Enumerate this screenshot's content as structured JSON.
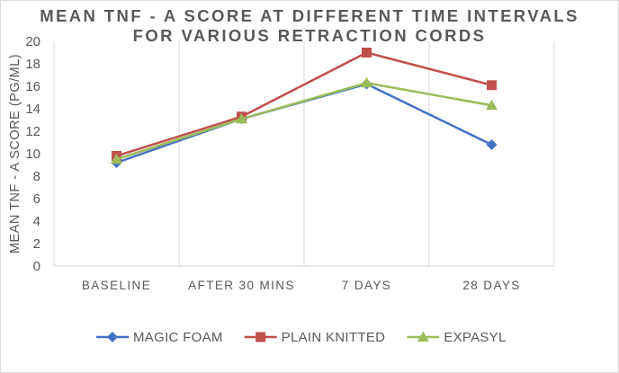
{
  "chart_data": {
    "type": "line",
    "title_line1": "MEAN TNF - A SCORE AT DIFFERENT TIME INTERVALS",
    "title_line2": "FOR VARIOUS RETRACTION CORDS",
    "xlabel": "",
    "ylabel": "MEAN TNF - A SCORE (PG/ML)",
    "categories": [
      "BASELINE",
      "AFTER 30 MINS",
      "7 DAYS",
      "28 DAYS"
    ],
    "ylim": [
      0,
      20
    ],
    "yticks": [
      "0",
      "2",
      "4",
      "6",
      "8",
      "10",
      "12",
      "14",
      "16",
      "18",
      "20"
    ],
    "grid": "vertical",
    "legend_position": "bottom",
    "series": [
      {
        "name": "MAGIC FOAM",
        "values": [
          9.2,
          13.1,
          16.2,
          10.8
        ],
        "color": "#4472c4",
        "marker": "diamond"
      },
      {
        "name": "PLAIN KNITTED",
        "values": [
          9.8,
          13.3,
          19.0,
          16.1
        ],
        "color": "#c0504d",
        "marker": "square"
      },
      {
        "name": "EXPASYL",
        "values": [
          9.5,
          13.1,
          16.3,
          14.3
        ],
        "color": "#9bbb59",
        "marker": "triangle"
      }
    ]
  }
}
